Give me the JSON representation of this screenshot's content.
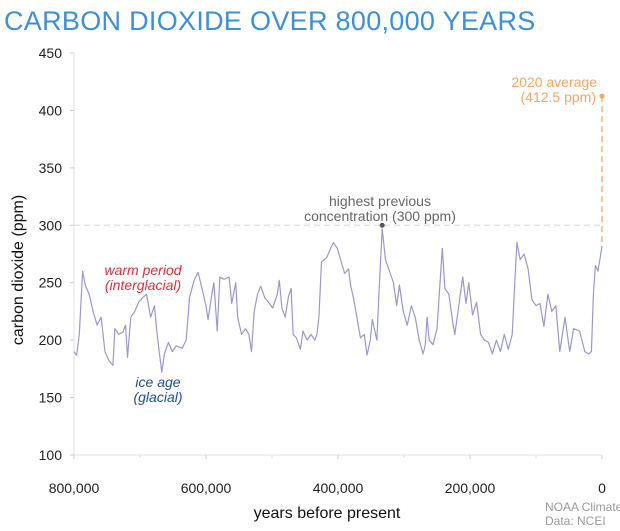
{
  "chart_data": {
    "type": "line",
    "title": "CARBON DIOXIDE OVER 800,000 YEARS",
    "xlabel": "years before present",
    "ylabel": "carbon dioxide (ppm)",
    "xlim": [
      800000,
      0
    ],
    "ylim": [
      100,
      450
    ],
    "x_ticks": [
      800000,
      600000,
      400000,
      200000,
      0
    ],
    "x_tick_labels": [
      "800,000",
      "600,000",
      "400,000",
      "200,000",
      "0"
    ],
    "x_minor_ticks": [
      700000,
      500000,
      300000,
      100000
    ],
    "y_ticks": [
      100,
      150,
      200,
      250,
      300,
      350,
      400,
      450
    ],
    "y_tick_labels": [
      "100",
      "150",
      "200",
      "250",
      "300",
      "350",
      "400",
      "450"
    ],
    "grid": false,
    "series": [
      {
        "name": "carbon dioxide",
        "color": "#9b97d0",
        "x_kyr": [
          800,
          796,
          792,
          787,
          783,
          777,
          771,
          765,
          759,
          753,
          747,
          741,
          738,
          732,
          726,
          722,
          719,
          714,
          708,
          702,
          696,
          690,
          684,
          678,
          675,
          672,
          667,
          663,
          657,
          651,
          645,
          636,
          630,
          625,
          618,
          612,
          606,
          600,
          597,
          591,
          588,
          583,
          579,
          573,
          565,
          561,
          555,
          552,
          546,
          540,
          535,
          531,
          527,
          522,
          517,
          511,
          504,
          499,
          492,
          489,
          485,
          480,
          475,
          471,
          468,
          463,
          457,
          453,
          447,
          441,
          435,
          432,
          429,
          425,
          417,
          411,
          407,
          401,
          396,
          390,
          384,
          381,
          377,
          372,
          366,
          360,
          356,
          351,
          348,
          345,
          341,
          338,
          333,
          328,
          322,
          316,
          311,
          307,
          301,
          295,
          289,
          283,
          277,
          271,
          268,
          265,
          262,
          256,
          250,
          242,
          238,
          232,
          226,
          223,
          217,
          211,
          206,
          202,
          196,
          190,
          184,
          178,
          172,
          166,
          160,
          154,
          148,
          142,
          136,
          133,
          129,
          124,
          118,
          112,
          106,
          100,
          94,
          88,
          82,
          76,
          70,
          64,
          56,
          49,
          43,
          34,
          26,
          20,
          16,
          13,
          10,
          6,
          0
        ],
        "y_ppm": [
          190,
          187,
          205,
          260,
          248,
          240,
          225,
          213,
          220,
          190,
          182,
          178,
          210,
          205,
          207,
          213,
          185,
          220,
          225,
          233,
          237,
          240,
          220,
          230,
          210,
          195,
          172,
          188,
          198,
          190,
          195,
          193,
          200,
          237,
          252,
          259,
          245,
          230,
          218,
          240,
          250,
          208,
          255,
          253,
          255,
          232,
          250,
          220,
          205,
          210,
          205,
          190,
          225,
          240,
          247,
          237,
          232,
          228,
          240,
          252,
          228,
          220,
          238,
          245,
          205,
          202,
          192,
          208,
          200,
          205,
          200,
          205,
          220,
          268,
          272,
          280,
          285,
          280,
          270,
          258,
          262,
          248,
          238,
          222,
          202,
          205,
          187,
          200,
          218,
          210,
          200,
          240,
          297,
          270,
          260,
          250,
          230,
          248,
          225,
          213,
          230,
          220,
          200,
          188,
          195,
          220,
          200,
          196,
          210,
          280,
          245,
          240,
          215,
          205,
          230,
          255,
          232,
          250,
          222,
          233,
          205,
          200,
          198,
          188,
          200,
          190,
          205,
          192,
          205,
          240,
          285,
          270,
          275,
          262,
          235,
          230,
          232,
          212,
          240,
          225,
          230,
          190,
          220,
          190,
          210,
          208,
          190,
          188,
          190,
          240,
          265,
          260,
          282
        ]
      }
    ],
    "reference_line": {
      "value": 300,
      "color": "#dddddd"
    },
    "annotations": {
      "warm": {
        "line1": "warm period",
        "line2": "(interglacial)",
        "color": "#d9323c"
      },
      "ice": {
        "line1": "ice age",
        "line2": "(glacial)",
        "color": "#1f4e8c"
      },
      "highest": {
        "line1": "highest previous",
        "line2": "concentration (300 ppm)",
        "color": "#666666",
        "x_years": 333000,
        "value": 300
      },
      "current": {
        "line1": "2020 average",
        "line2": "(412.5 ppm)",
        "color": "#f5a66a",
        "x_years": 0,
        "value": 412.5,
        "from_value": 282
      }
    }
  },
  "credit": {
    "line1": "NOAA Climate.gov",
    "line2": "Data: NCEI"
  }
}
